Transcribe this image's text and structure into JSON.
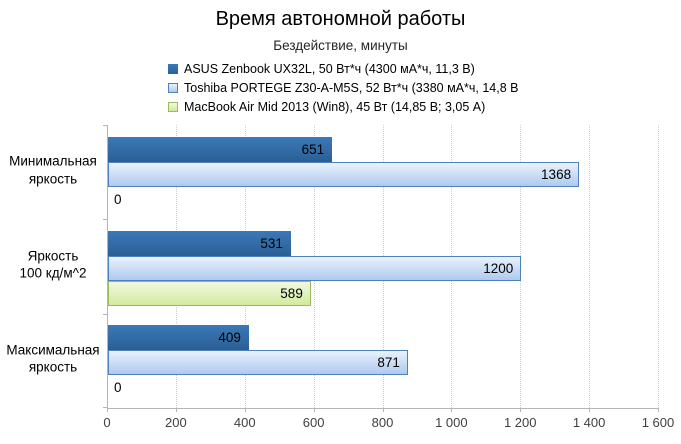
{
  "chart_data": {
    "type": "bar",
    "orientation": "horizontal",
    "title": "Время автономной работы",
    "subtitle": "Бездействие, минуты",
    "xlabel": "",
    "ylabel": "",
    "xlim": [
      0,
      1600
    ],
    "grid": "vertical-dotted",
    "legend_position": "top-center",
    "value_labels": "inside-end",
    "categories": [
      "Минимальная яркость",
      "Яркость 100 кд/м^2",
      "Максимальная яркость"
    ],
    "category_lines": [
      [
        "Минимальная",
        "яркость"
      ],
      [
        "Яркость",
        "100 кд/м^2"
      ],
      [
        "Максимальная",
        "яркость"
      ]
    ],
    "x_ticks": [
      {
        "value": 0,
        "label": "0"
      },
      {
        "value": 200,
        "label": "200"
      },
      {
        "value": 400,
        "label": "400"
      },
      {
        "value": 600,
        "label": "600"
      },
      {
        "value": 800,
        "label": "800"
      },
      {
        "value": 1000,
        "label": "1 000"
      },
      {
        "value": 1200,
        "label": "1 200"
      },
      {
        "value": 1400,
        "label": "1 400"
      },
      {
        "value": 1600,
        "label": "1 600"
      }
    ],
    "series": [
      {
        "name": "ASUS Zenbook UX32L, 50 Вт*ч (4300 мА*ч, 11,3 В)",
        "values": [
          651,
          531,
          409
        ],
        "style": {
          "fill_top": "#3B79B8",
          "fill_bottom": "#2B5F94",
          "border": ""
        }
      },
      {
        "name": "Toshiba PORTEGE Z30-A-M5S, 52 Вт*ч (3380 мА*ч, 14,8 В",
        "values": [
          1368,
          1200,
          871
        ],
        "style": {
          "fill_top": "#EAF2FC",
          "fill_bottom": "#AEC9EF",
          "border": "#4F81BD"
        }
      },
      {
        "name": "MacBook Air Mid 2013 (Win8), 45 Вт (14,85 В; 3,05 А)",
        "values": [
          0,
          589,
          0
        ],
        "style": {
          "fill_top": "#F1F9E0",
          "fill_bottom": "#D2EA9E",
          "border": "#9BBB59"
        }
      }
    ],
    "colors": {
      "axis_line": "#B5B5B5",
      "gridline": "#CFCFCF",
      "text": "#000000",
      "axis_label": "#404040",
      "subtitle": "#262626"
    }
  }
}
